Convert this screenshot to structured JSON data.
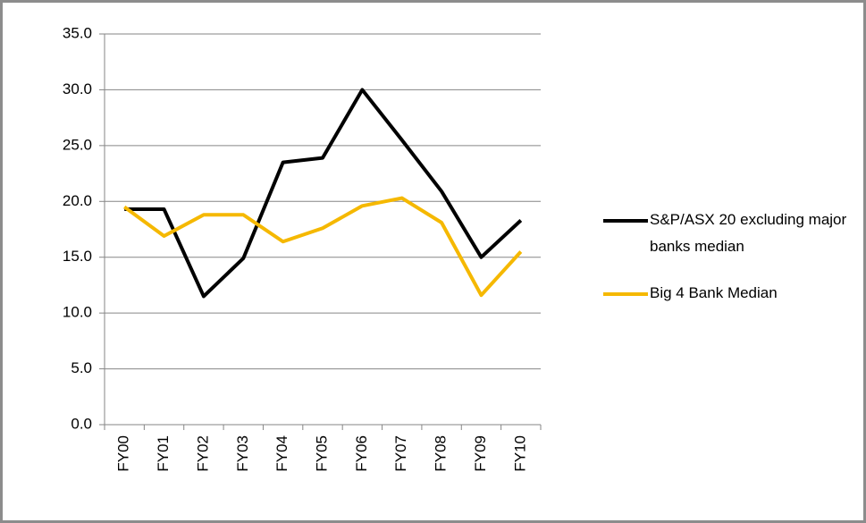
{
  "chart_data": {
    "type": "line",
    "categories": [
      "FY00",
      "FY01",
      "FY02",
      "FY03",
      "FY04",
      "FY05",
      "FY06",
      "FY07",
      "FY08",
      "FY09",
      "FY10"
    ],
    "series": [
      {
        "name": "S&P/ASX 20 excluding major banks median",
        "color": "#000000",
        "values": [
          19.3,
          19.3,
          11.5,
          14.9,
          23.5,
          23.9,
          30.0,
          25.5,
          20.9,
          15.0,
          18.3
        ]
      },
      {
        "name": "Big 4 Bank Median",
        "color": "#f5b800",
        "values": [
          19.5,
          16.9,
          18.8,
          18.8,
          16.4,
          17.6,
          19.6,
          20.3,
          18.1,
          11.6,
          15.5
        ]
      }
    ],
    "ylim": [
      0,
      35
    ],
    "yticks": [
      {
        "value": 0,
        "label": "0.0"
      },
      {
        "value": 5,
        "label": "5.0"
      },
      {
        "value": 10,
        "label": "10.0"
      },
      {
        "value": 15,
        "label": "15.0"
      },
      {
        "value": 20,
        "label": "20.0"
      },
      {
        "value": 25,
        "label": "25.0"
      },
      {
        "value": 30,
        "label": "30.0"
      },
      {
        "value": 35,
        "label": "35.0"
      }
    ],
    "grid": true,
    "legend": "right"
  }
}
